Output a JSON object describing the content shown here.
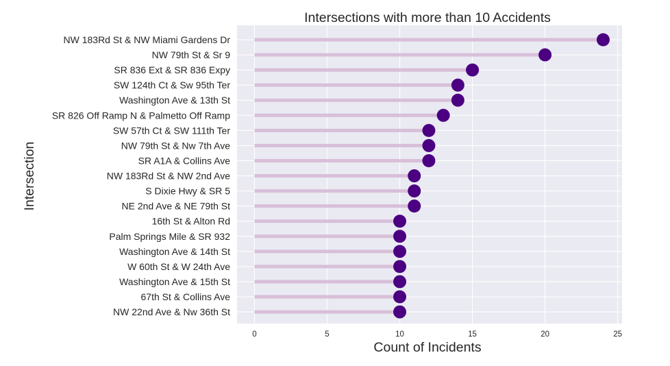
{
  "chart_data": {
    "type": "lollipop",
    "title": "Intersections with more than 10 Accidents",
    "xlabel": "Count of Incidents",
    "ylabel": "Intersection",
    "xlim": [
      -1.2,
      25.3
    ],
    "xticks": [
      0,
      5,
      10,
      15,
      20,
      25
    ],
    "grid": true,
    "categories": [
      "NW 183Rd St & NW Miami Gardens Dr",
      "NW 79th St & Sr 9",
      "SR 836 Ext & SR 836 Expy",
      "SW 124th Ct & Sw 95th Ter",
      "Washington Ave & 13th St",
      "SR 826 Off Ramp N & Palmetto Off Ramp",
      "SW 57th Ct & SW 111th Ter",
      "NW 79th St & Nw 7th Ave",
      "SR  A1A & Collins Ave",
      "NW 183Rd St & NW 2nd Ave",
      "S Dixie Hwy & SR 5",
      "NE 2nd Ave & NE 79th St",
      "16th St & Alton Rd",
      "Palm Springs Mile & SR 932",
      "Washington Ave & 14th St",
      "W 60th St & W 24th Ave",
      "Washington Ave & 15th St",
      "67th St & Collins Ave",
      "NW 22nd Ave & Nw 36th St"
    ],
    "values": [
      24,
      20,
      15,
      14,
      14,
      13,
      12,
      12,
      12,
      11,
      11,
      11,
      10,
      10,
      10,
      10,
      10,
      10,
      10
    ],
    "colors": {
      "background": "#eaeaf2",
      "grid": "#ffffff",
      "stem": "#d8bfd8",
      "marker": "#4b0082",
      "text": "#262626"
    }
  }
}
